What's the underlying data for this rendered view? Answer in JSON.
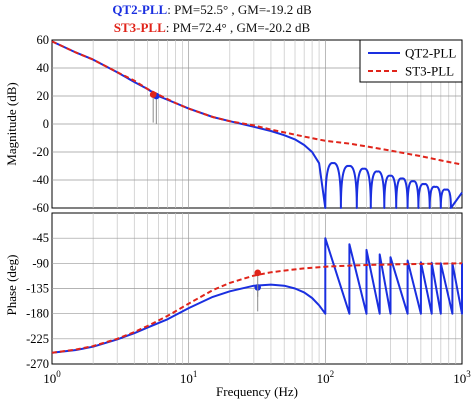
{
  "header": {
    "line1": {
      "name": "QT2-PLL",
      "text": ": PM=52.5° , GM=-19.2 dB",
      "color": "#1a2fe0"
    },
    "line2": {
      "name": "ST3-PLL",
      "text": ": PM=72.4° , GM=-20.2 dB",
      "color": "#e0241a"
    }
  },
  "chart_data": [
    {
      "type": "line",
      "xscale": "log",
      "xlim": [
        1,
        1000
      ],
      "ylim": [
        -60,
        60
      ],
      "yticks": [
        60,
        40,
        20,
        0,
        -20,
        -40,
        -60
      ],
      "ylabel": "Magnitude (dB)",
      "legend": {
        "placement": "top-right",
        "entries": [
          "QT2-PLL",
          "ST3-PLL"
        ]
      },
      "grid": true,
      "series": [
        {
          "name": "QT2-PLL",
          "color": "#1a2fe0",
          "style": "solid",
          "x": [
            1,
            1.5,
            2,
            3,
            4,
            5,
            6,
            8,
            10,
            15,
            20,
            30,
            40,
            50,
            60,
            70,
            80,
            90
          ],
          "y": [
            59,
            51,
            46,
            37,
            30,
            25,
            20,
            15,
            11,
            5,
            2,
            -2,
            -5,
            -8,
            -11,
            -15,
            -20,
            -28
          ],
          "notches": {
            "x": [
              100,
              130,
              170,
              215,
              270,
              330,
              400,
              480,
              580,
              700,
              830
            ],
            "floor": -60,
            "top_y": [
              -28,
              -30,
              -32,
              -34,
              -37,
              -39,
              -41,
              -43,
              -45,
              -47,
              -49
            ]
          },
          "marker": {
            "x": 5.8,
            "y": 20
          }
        },
        {
          "name": "ST3-PLL",
          "color": "#e0241a",
          "style": "dashed",
          "x": [
            1,
            1.5,
            2,
            3,
            4,
            5,
            6,
            8,
            10,
            15,
            20,
            30,
            40,
            50,
            70,
            100,
            150,
            200,
            300,
            500,
            700,
            1000
          ],
          "y": [
            59,
            51,
            46,
            37,
            31,
            25,
            21,
            15,
            11,
            5,
            2,
            -1,
            -4,
            -6,
            -9,
            -12,
            -14,
            -16,
            -19,
            -23,
            -26,
            -29
          ],
          "marker": {
            "x": 5.5,
            "y": 21
          }
        }
      ]
    },
    {
      "type": "line",
      "xscale": "log",
      "xlim": [
        1,
        1000
      ],
      "ylim": [
        -270,
        0
      ],
      "yticks": [
        -45,
        -90,
        -135,
        -180,
        -225,
        -270
      ],
      "ylabel": "Phase (deg)",
      "xlabel": "Frequency  (Hz)",
      "xtick_labels": [
        {
          "x": 1,
          "base": "10",
          "exp": "0"
        },
        {
          "x": 10,
          "base": "10",
          "exp": "1"
        },
        {
          "x": 100,
          "base": "10",
          "exp": "2"
        },
        {
          "x": 1000,
          "base": "10",
          "exp": "3"
        }
      ],
      "grid": true,
      "series": [
        {
          "name": "QT2-PLL",
          "color": "#1a2fe0",
          "style": "solid",
          "x": [
            1,
            1.5,
            2,
            3,
            4,
            5,
            7,
            10,
            15,
            20,
            30,
            40,
            50,
            60,
            70,
            80,
            90,
            100
          ],
          "y": [
            -250,
            -245,
            -239,
            -226,
            -215,
            -205,
            -190,
            -170,
            -150,
            -140,
            -130,
            -128,
            -130,
            -135,
            -142,
            -152,
            -165,
            -180
          ],
          "sawtooth": {
            "x": [
              100,
              150,
              200,
              250,
              300,
              400,
              500,
              600,
              700,
              850,
              1000
            ],
            "high": [
              -45,
              -56,
              -66,
              -74,
              -79,
              -85,
              -88,
              -89,
              -90,
              -90,
              -90
            ],
            "low": [
              -180,
              -180,
              -180,
              -180,
              -180,
              -180,
              -180,
              -180,
              -180,
              -180,
              -180
            ]
          },
          "marker": {
            "x": 32,
            "y": -133
          }
        },
        {
          "name": "ST3-PLL",
          "color": "#e0241a",
          "style": "dashed",
          "x": [
            1,
            1.5,
            2,
            3,
            4,
            5,
            7,
            10,
            15,
            20,
            30,
            40,
            50,
            70,
            100,
            150,
            200,
            300,
            500,
            700,
            1000
          ],
          "y": [
            -250,
            -244,
            -238,
            -225,
            -213,
            -202,
            -184,
            -162,
            -138,
            -125,
            -112,
            -106,
            -103,
            -99,
            -96,
            -94,
            -93,
            -92,
            -91,
            -90.5,
            -90
          ],
          "marker": {
            "x": 32,
            "y": -107
          }
        }
      ]
    }
  ]
}
